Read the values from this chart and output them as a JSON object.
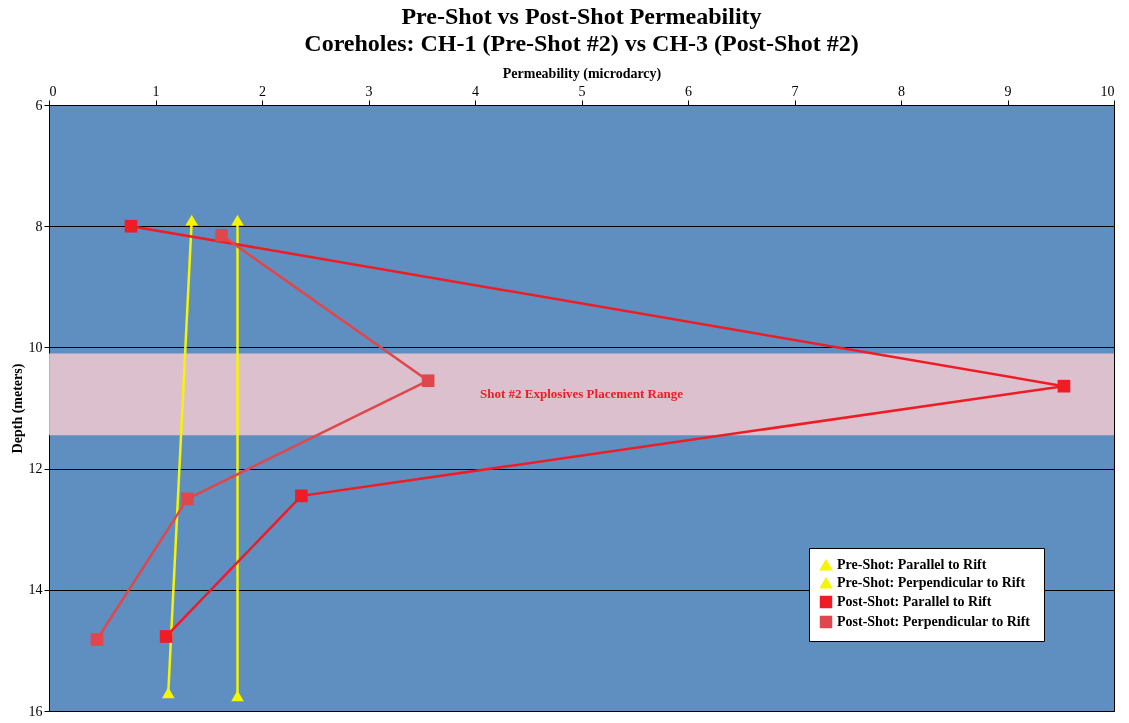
{
  "chart_data": {
    "type": "line",
    "title": "Pre-Shot vs Post-Shot Permeability",
    "subtitle": "Coreholes:  CH-1 (Pre-Shot #2) vs CH-3 (Post-Shot #2)",
    "xlabel": "Permeability (microdarcy)",
    "ylabel": "Depth (meters)",
    "xlim": [
      0,
      10
    ],
    "xticks": [
      0,
      1,
      2,
      3,
      4,
      5,
      6,
      7,
      8,
      9,
      10
    ],
    "ylim": [
      16,
      6
    ],
    "yticks": [
      6,
      8,
      10,
      12,
      14,
      16
    ],
    "grid": "y",
    "legend": "bottom right",
    "series": [
      {
        "name": "Pre-Shot:  Parallel to Rift",
        "color": "#f5f500",
        "marker": "triangle",
        "x": [
          1.77,
          1.77
        ],
        "values": [
          7.9,
          15.75
        ]
      },
      {
        "name": "Pre-Shot:  Perpendicular to Rift",
        "color": "#f5f500",
        "marker": "triangle",
        "x": [
          1.34,
          1.12
        ],
        "values": [
          7.9,
          15.7
        ]
      },
      {
        "name": "Post-Shot:  Parallel to Rift",
        "color": "#ee1c25",
        "marker": "square",
        "x": [
          0.77,
          9.53,
          2.37,
          1.1
        ],
        "values": [
          8.0,
          10.64,
          12.45,
          14.77
        ]
      },
      {
        "name": "Post-Shot:  Perpendicular to Rift",
        "color": "#e0474c",
        "marker": "square",
        "x": [
          1.62,
          3.56,
          1.3,
          0.45
        ],
        "values": [
          8.15,
          10.55,
          12.5,
          14.82
        ]
      }
    ],
    "bands": [
      {
        "axis": "y",
        "from": 10.1,
        "to": 11.45,
        "label": "Shot #2 Explosives Placement Range",
        "color": "#f2c9cf"
      }
    ]
  }
}
